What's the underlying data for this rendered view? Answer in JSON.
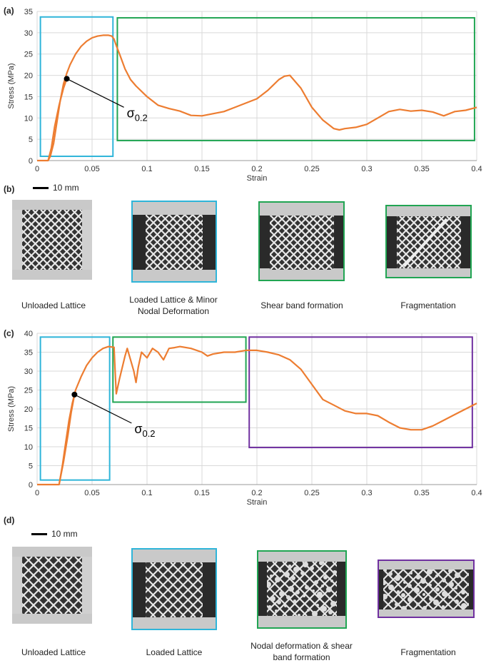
{
  "panels": {
    "a": {
      "label": "(a)"
    },
    "b": {
      "label": "(b)",
      "scale": "10 mm",
      "captions": [
        "Unloaded Lattice",
        "Loaded Lattice & Minor Nodal Deformation",
        "Shear band formation",
        "Fragmentation"
      ]
    },
    "c": {
      "label": "(c)"
    },
    "d": {
      "label": "(d)",
      "scale": "10 mm",
      "captions": [
        "Unloaded Lattice",
        "Loaded Lattice",
        "Nodal deformation & shear band formation",
        "Fragmentation"
      ]
    }
  },
  "colors": {
    "curve": "#ed7d31",
    "cyan": "#2fb5d9",
    "green": "#21a553",
    "purple": "#7030a0",
    "grid": "#d9d9d9"
  },
  "chart_data": [
    {
      "type": "line",
      "xlabel": "Strain",
      "ylabel": "Stress (MPa)",
      "xlim": [
        0,
        0.4
      ],
      "ylim": [
        0,
        35
      ],
      "xticks": [
        "0",
        "0.05",
        "0.1",
        "0.15",
        "0.2",
        "0.25",
        "0.3",
        "0.35",
        "0.4"
      ],
      "yticks": [
        "0",
        "5",
        "10",
        "15",
        "20",
        "25",
        "30",
        "35"
      ],
      "grid": true,
      "series": [
        {
          "x": [
            0,
            0.01,
            0.012,
            0.015,
            0.018,
            0.021,
            0.024,
            0.027,
            0.03,
            0.035,
            0.04,
            0.045,
            0.05,
            0.055,
            0.06,
            0.065,
            0.068,
            0.07,
            0.072,
            0.075,
            0.08,
            0.085,
            0.09,
            0.1,
            0.11,
            0.12,
            0.13,
            0.14,
            0.15,
            0.16,
            0.17,
            0.18,
            0.19,
            0.2,
            0.21,
            0.22,
            0.225,
            0.23,
            0.24,
            0.25,
            0.26,
            0.27,
            0.275,
            0.28,
            0.29,
            0.3,
            0.31,
            0.32,
            0.33,
            0.34,
            0.35,
            0.36,
            0.37,
            0.38,
            0.39,
            0.4
          ],
          "y": [
            0,
            0,
            1,
            4,
            9,
            14,
            18,
            20.5,
            22.5,
            25,
            26.8,
            28,
            28.8,
            29.2,
            29.4,
            29.4,
            29.2,
            28.5,
            27,
            25,
            21.5,
            19,
            17.5,
            15,
            13,
            12.2,
            11.6,
            10.6,
            10.5,
            11,
            11.5,
            12.5,
            13.5,
            14.5,
            16.5,
            19,
            19.8,
            20,
            17,
            12.5,
            9.5,
            7.5,
            7.2,
            7.5,
            7.8,
            8.5,
            10,
            11.5,
            12,
            11.6,
            11.8,
            11.4,
            10.5,
            11.5,
            11.8,
            12.5
          ]
        },
        {
          "x": [
            0.01,
            0.013,
            0.016,
            0.02,
            0.024,
            0.027
          ],
          "y": [
            0,
            3,
            8,
            13,
            17,
            19.2
          ]
        }
      ],
      "marker": {
        "label": "σ",
        "subscript": "0.2",
        "x": 0.027,
        "y": 19.2
      },
      "boxes": [
        {
          "color": "cyan",
          "x": [
            0.003,
            0.069
          ],
          "y": [
            1,
            33.7
          ]
        },
        {
          "color": "green",
          "x": [
            0.073,
            0.398
          ],
          "y": [
            4.7,
            33.5
          ]
        }
      ]
    },
    {
      "type": "line",
      "xlabel": "Strain",
      "ylabel": "Stress (MPa)",
      "xlim": [
        0,
        0.4
      ],
      "ylim": [
        0,
        40
      ],
      "xticks": [
        "0",
        "0.05",
        "0.1",
        "0.15",
        "0.2",
        "0.25",
        "0.3",
        "0.35",
        "0.4"
      ],
      "yticks": [
        "0",
        "5",
        "10",
        "15",
        "20",
        "25",
        "30",
        "35",
        "40"
      ],
      "grid": true,
      "series": [
        {
          "x": [
            0,
            0.02,
            0.023,
            0.026,
            0.029,
            0.032,
            0.035,
            0.04,
            0.045,
            0.05,
            0.055,
            0.06,
            0.065,
            0.07,
            0.071,
            0.072,
            0.075,
            0.08,
            0.082,
            0.085,
            0.088,
            0.09,
            0.092,
            0.095,
            0.1,
            0.105,
            0.11,
            0.115,
            0.12,
            0.125,
            0.13,
            0.14,
            0.15,
            0.155,
            0.16,
            0.17,
            0.18,
            0.19,
            0.2,
            0.21,
            0.22,
            0.23,
            0.24,
            0.25,
            0.26,
            0.27,
            0.28,
            0.29,
            0.3,
            0.31,
            0.32,
            0.33,
            0.34,
            0.35,
            0.36,
            0.37,
            0.38,
            0.39,
            0.4
          ],
          "y": [
            0,
            0,
            5,
            11,
            17,
            21.5,
            25,
            28.5,
            31.5,
            33.5,
            35,
            36,
            36.5,
            36.3,
            30,
            24,
            28,
            34,
            36,
            33,
            30,
            27,
            31,
            35,
            33.5,
            36,
            35,
            33,
            36,
            36.2,
            36.5,
            36,
            35,
            34,
            34.5,
            35,
            35,
            35.5,
            35.5,
            35,
            34.3,
            33,
            30.5,
            26.5,
            22.5,
            21,
            19.5,
            18.8,
            18.8,
            18.2,
            16.5,
            15,
            14.5,
            14.5,
            15.5,
            17,
            18.5,
            20,
            21.5
          ]
        },
        {
          "x": [
            0.02,
            0.024,
            0.028,
            0.031,
            0.034
          ],
          "y": [
            0,
            6,
            13,
            19,
            23.8
          ]
        }
      ],
      "marker": {
        "label": "σ",
        "subscript": "0.2",
        "x": 0.034,
        "y": 23.8
      },
      "boxes": [
        {
          "color": "cyan",
          "x": [
            0.003,
            0.066
          ],
          "y": [
            1.2,
            39
          ]
        },
        {
          "color": "green",
          "x": [
            0.069,
            0.19
          ],
          "y": [
            21.8,
            39
          ]
        },
        {
          "color": "purple",
          "x": [
            0.193,
            0.396
          ],
          "y": [
            9.8,
            39
          ]
        }
      ]
    }
  ]
}
